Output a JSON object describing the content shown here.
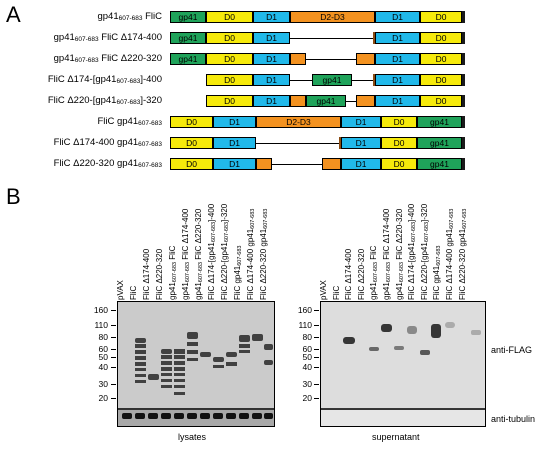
{
  "panels": {
    "a": "A",
    "b": "B"
  },
  "constructs": [
    {
      "label_main": "gp41",
      "label_sub": "607-683",
      "label_rest": " FliC"
    },
    {
      "label_main": "gp41",
      "label_sub": "607-683",
      "label_rest": " FliC Δ174-400"
    },
    {
      "label_main": "gp41",
      "label_sub": "607-683",
      "label_rest": " FliC Δ220-320"
    },
    {
      "label_main": "FliC Δ174-[gp41",
      "label_sub": "607-683",
      "label_rest": "]-400"
    },
    {
      "label_main": "FliC Δ220-[gp41",
      "label_sub": "607-683",
      "label_rest": "]-320"
    },
    {
      "label_main": "FliC gp41",
      "label_sub": "607-683",
      "label_rest": ""
    },
    {
      "label_main": "FliC Δ174-400 gp41",
      "label_sub": "607-683",
      "label_rest": ""
    },
    {
      "label_main": "FliC Δ220-320 gp41",
      "label_sub": "607-683",
      "label_rest": ""
    }
  ],
  "domains": {
    "gp41": "gp41",
    "d0": "D0",
    "d1": "D1",
    "d23": "D2-D3"
  },
  "lanes_lysate": [
    {
      "m": "pVAX",
      "s": "",
      "r": ""
    },
    {
      "m": "FliC",
      "s": "",
      "r": ""
    },
    {
      "m": "FliC Δ174-400",
      "s": "",
      "r": ""
    },
    {
      "m": "FliC Δ220-320",
      "s": "",
      "r": ""
    },
    {
      "m": "gp41",
      "s": "607-683",
      "r": " FliC"
    },
    {
      "m": "gp41",
      "s": "607-683",
      "r": " FliC Δ174-400"
    },
    {
      "m": "gp41",
      "s": "607-683",
      "r": " FliC Δ220-320"
    },
    {
      "m": "FliC Δ174-[gp41",
      "s": "607-683",
      "r": "]-400"
    },
    {
      "m": "FliC Δ220-[gp41",
      "s": "607-683",
      "r": "]-320"
    },
    {
      "m": "FliC gp41",
      "s": "607-683",
      "r": ""
    },
    {
      "m": "FliC Δ174-400 gp41",
      "s": "607-683",
      "r": ""
    },
    {
      "m": "FliC Δ220-320 gp41",
      "s": "607-683",
      "r": ""
    }
  ],
  "lanes_super": [
    {
      "m": "pVAX",
      "s": "",
      "r": ""
    },
    {
      "m": "FliC",
      "s": "",
      "r": ""
    },
    {
      "m": "FliC Δ174-400",
      "s": "",
      "r": ""
    },
    {
      "m": "FliC Δ220-320",
      "s": "",
      "r": ""
    },
    {
      "m": "gp41",
      "s": "607-683",
      "r": " FliC"
    },
    {
      "m": "gp41",
      "s": "607-683",
      "r": " FliC Δ174-400"
    },
    {
      "m": "gp41",
      "s": "607-683",
      "r": " FliC Δ220-320"
    },
    {
      "m": "FliC Δ174-[gp41",
      "s": "607-683",
      "r": "]-400"
    },
    {
      "m": "FliC Δ220-[gp41",
      "s": "607-683",
      "r": "]-320"
    },
    {
      "m": "FliC gp41",
      "s": "607-683",
      "r": ""
    },
    {
      "m": "FliC Δ174-400 gp41",
      "s": "607-683",
      "r": ""
    },
    {
      "m": "FliC Δ220-320 gp41",
      "s": "607-683",
      "r": ""
    }
  ],
  "markers": [
    "160",
    "110",
    "80",
    "60",
    "50",
    "40",
    "30",
    "20"
  ],
  "antibodies": {
    "flag": "anti-FLAG",
    "tubulin": "anti-tubulin"
  },
  "captions": {
    "lysates": "lysates",
    "supernatant": "supernatant"
  },
  "colors": {
    "gp41": "#1fa35a",
    "d0": "#f6ea0b",
    "d1": "#21b9ea",
    "d23": "#f39220"
  }
}
